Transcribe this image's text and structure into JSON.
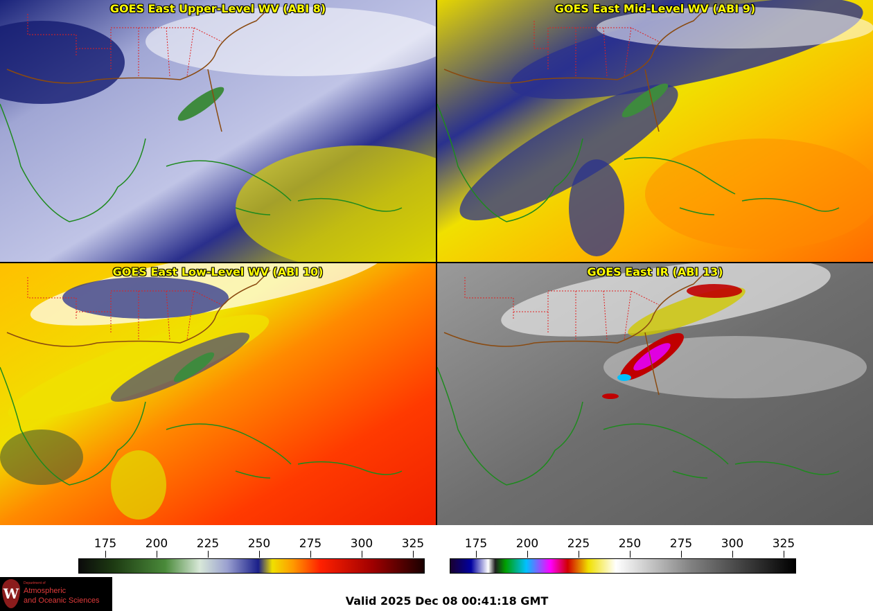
{
  "panels": {
    "p1_title": "GOES East Upper-Level WV (ABI 8)",
    "p2_title": "GOES East Mid-Level WV (ABI 9)",
    "p3_title": "GOES East Low-Level WV (ABI 10)",
    "p4_title": "GOES East IR (ABI 13)"
  },
  "colorbar_left": {
    "ticks": [
      "175",
      "200",
      "225",
      "250",
      "275",
      "300",
      "325"
    ]
  },
  "colorbar_right": {
    "ticks": [
      "175",
      "200",
      "225",
      "250",
      "275",
      "300",
      "325"
    ]
  },
  "logo": {
    "letter": "W",
    "dept": "Department of",
    "line1": "Atmospheric",
    "line2": "and Oceanic Sciences"
  },
  "valid_time": "Valid 2025 Dec 08 00:41:18 GMT",
  "colors": {
    "title": "#ffff00",
    "coast": "#1e8a1e",
    "states": "#e02020",
    "background": "#ffffff"
  }
}
